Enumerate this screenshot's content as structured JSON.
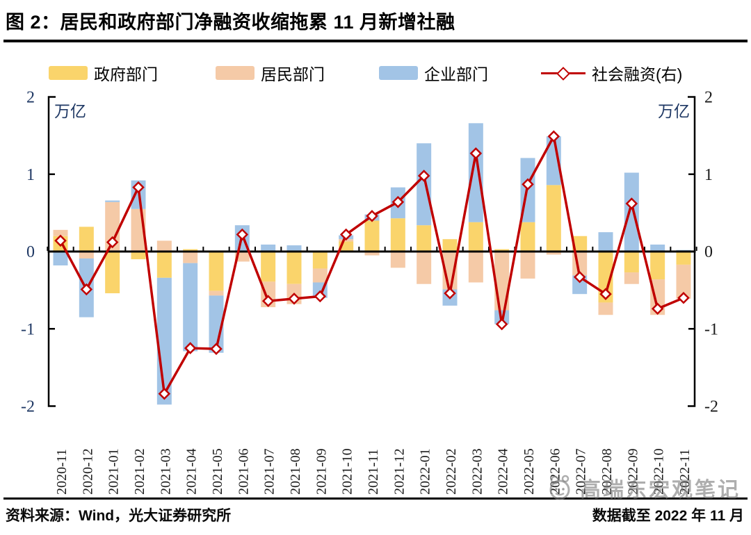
{
  "header": {
    "title": "图 2：居民和政府部门净融资收缩拖累 11 月新增社融"
  },
  "footer": {
    "source": "资料来源：Wind，光大证券研究所",
    "as_of": "数据截至 2022 年 11 月"
  },
  "watermark": {
    "text": "高瑞东宏观笔记",
    "icon": "wechat-account-icon"
  },
  "axes": {
    "left_unit_label": "万亿",
    "right_unit_label": "万亿",
    "left_tick_color": "#1F3864",
    "right_tick_color": "#1a1a1a"
  },
  "chart_data": {
    "type": "bar+line",
    "title": "图 2：居民和政府部门净融资收缩拖累 11 月新增社融",
    "stacked": true,
    "grid": false,
    "legend_position": "top",
    "ylim": [
      -2,
      2
    ],
    "y_ticks": [
      "2",
      "1",
      "0",
      "-1",
      "-2"
    ],
    "y_unit": "万亿",
    "categories": [
      "2020-11",
      "2020-12",
      "2021-01",
      "2021-02",
      "2021-03",
      "2021-04",
      "2021-05",
      "2021-06",
      "2021-07",
      "2021-08",
      "2021-09",
      "2021-10",
      "2021-11",
      "2021-12",
      "2022-01",
      "2022-02",
      "2022-03",
      "2022-04",
      "2022-05",
      "2022-06",
      "2022-07",
      "2022-08",
      "2022-09",
      "2022-10",
      "2022-11"
    ],
    "stacked_bar_series": [
      {
        "name": "政府部门",
        "color": "#FAD46B",
        "values": [
          0.2,
          0.32,
          -0.54,
          -0.1,
          -0.34,
          0.03,
          -0.51,
          0.0,
          -0.39,
          -0.42,
          -0.22,
          0.13,
          0.4,
          0.43,
          0.34,
          0.16,
          0.38,
          0.03,
          0.38,
          0.86,
          0.2,
          -0.66,
          -0.27,
          -0.36,
          -0.17
        ]
      },
      {
        "name": "居民部门",
        "color": "#F5CAA7",
        "values": [
          0.08,
          -0.09,
          0.64,
          0.55,
          0.14,
          -0.15,
          -0.06,
          -0.13,
          -0.33,
          -0.26,
          -0.18,
          0.03,
          -0.05,
          -0.21,
          -0.42,
          -0.49,
          -0.4,
          -0.76,
          -0.35,
          -0.04,
          -0.31,
          -0.16,
          -0.15,
          -0.46,
          -0.44
        ]
      },
      {
        "name": "企业部门",
        "color": "#A2C4E6",
        "values": [
          -0.18,
          -0.76,
          0.02,
          0.37,
          -1.64,
          -1.14,
          -0.74,
          0.34,
          0.09,
          0.08,
          -0.2,
          0.05,
          0.08,
          0.4,
          1.06,
          -0.21,
          1.28,
          -0.18,
          0.83,
          0.63,
          -0.24,
          0.25,
          1.02,
          0.09,
          0.02
        ]
      }
    ],
    "line_series": {
      "name": "社会融资(右)",
      "color": "#C00000",
      "axis": "right",
      "marker": "diamond",
      "values": [
        0.14,
        -0.49,
        0.12,
        0.83,
        -1.84,
        -1.25,
        -1.26,
        0.22,
        -0.64,
        -0.61,
        -0.58,
        0.22,
        0.46,
        0.64,
        0.98,
        -0.54,
        1.27,
        -0.94,
        0.87,
        1.49,
        -0.33,
        -0.55,
        0.62,
        -0.74,
        -0.6
      ]
    }
  }
}
